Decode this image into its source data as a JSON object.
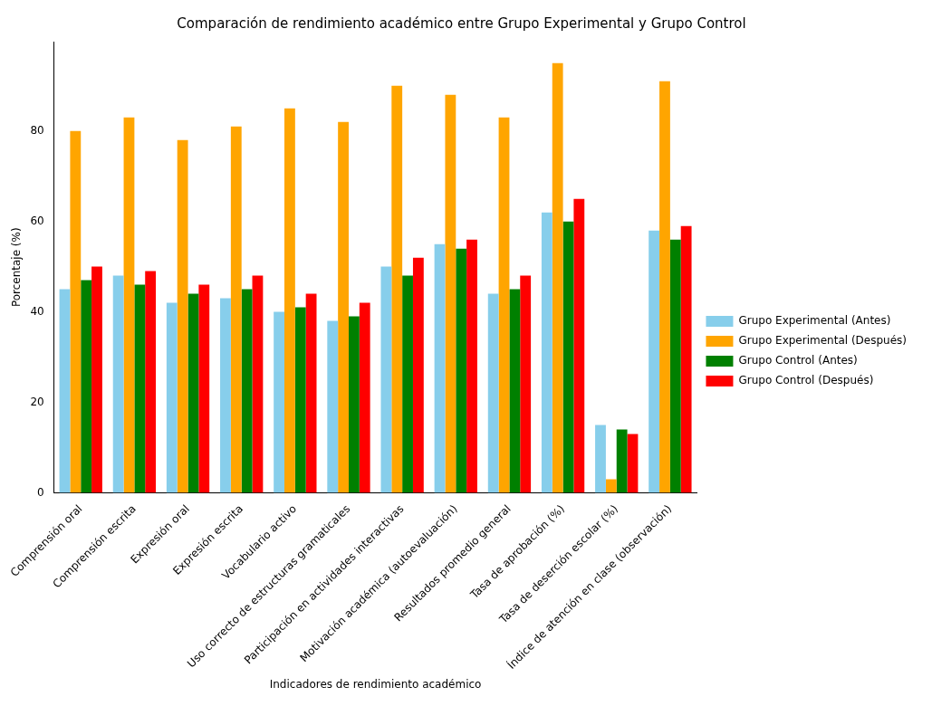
{
  "chart_data": {
    "type": "bar",
    "title": "Comparación de rendimiento académico entre Grupo Experimental y Grupo Control",
    "xlabel": "Indicadores de rendimiento académico",
    "ylabel": "Porcentaje (%)",
    "categories": [
      "Comprensión oral",
      "Comprensión escrita",
      "Expresión oral",
      "Expresión escrita",
      "Vocabulario activo",
      "Uso correcto de estructuras gramaticales",
      "Participación en actividades interactivas",
      "Motivación académica (autoevaluación)",
      "Resultados promedio general",
      "Tasa de aprobación (%)",
      "Tasa de deserción escolar (%)",
      "Índice de atención en clase (observación)"
    ],
    "series": [
      {
        "name": "Grupo Experimental (Antes)",
        "color": "#87ceeb",
        "values": [
          45,
          48,
          42,
          43,
          40,
          38,
          50,
          55,
          44,
          62,
          15,
          58
        ]
      },
      {
        "name": "Grupo Experimental (Después)",
        "color": "#ffa500",
        "values": [
          80,
          83,
          78,
          81,
          85,
          82,
          90,
          88,
          83,
          95,
          3,
          91
        ]
      },
      {
        "name": "Grupo Control (Antes)",
        "color": "#008000",
        "values": [
          47,
          46,
          44,
          45,
          41,
          39,
          48,
          54,
          45,
          60,
          14,
          56
        ]
      },
      {
        "name": "Grupo Control (Después)",
        "color": "#ff0000",
        "values": [
          50,
          49,
          46,
          48,
          44,
          42,
          52,
          56,
          48,
          65,
          13,
          59
        ]
      }
    ],
    "ylim": [
      0,
      99.75
    ],
    "yticks": [
      0,
      20,
      40,
      60,
      80
    ],
    "grid": false,
    "legend": "right"
  }
}
